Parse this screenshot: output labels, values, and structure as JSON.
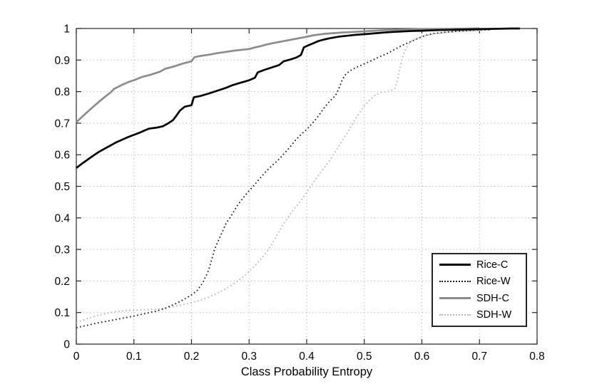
{
  "figure": {
    "background": "#ffffff",
    "axis_color": "#262626",
    "grid_color": "#aaaaaa",
    "tick_label_color": "#000000"
  },
  "chart_data": {
    "type": "line",
    "title": "",
    "xlabel": "Class Probability Entropy",
    "ylabel": "",
    "xlim": [
      0,
      0.8
    ],
    "ylim": [
      0,
      1
    ],
    "grid": true,
    "grid_style": "dotted",
    "legend_position": "lower-right",
    "x_ticks": [
      0,
      0.1,
      0.2,
      0.3,
      0.4,
      0.5,
      0.6,
      0.7,
      0.8
    ],
    "x_tick_labels": [
      "0",
      "0.1",
      "0.2",
      "0.3",
      "0.4",
      "0.5",
      "0.6",
      "0.7",
      "0.8"
    ],
    "y_ticks": [
      0,
      0.1,
      0.2,
      0.3,
      0.4,
      0.5,
      0.6,
      0.7,
      0.8,
      0.9,
      1
    ],
    "y_tick_labels": [
      "0",
      "0.1",
      "0.2",
      "0.3",
      "0.4",
      "0.5",
      "0.6",
      "0.7",
      "0.8",
      "0.9",
      "1"
    ],
    "series": [
      {
        "name": "Rice-C",
        "color": "#000000",
        "line_style": "solid",
        "line_width": 2.7,
        "points": [
          [
            0,
            0.558
          ],
          [
            0.01,
            0.572
          ],
          [
            0.02,
            0.585
          ],
          [
            0.03,
            0.598
          ],
          [
            0.04,
            0.61
          ],
          [
            0.05,
            0.62
          ],
          [
            0.06,
            0.63
          ],
          [
            0.07,
            0.64
          ],
          [
            0.08,
            0.648
          ],
          [
            0.09,
            0.656
          ],
          [
            0.1,
            0.663
          ],
          [
            0.11,
            0.67
          ],
          [
            0.12,
            0.678
          ],
          [
            0.127,
            0.683
          ],
          [
            0.14,
            0.686
          ],
          [
            0.15,
            0.69
          ],
          [
            0.16,
            0.7
          ],
          [
            0.168,
            0.71
          ],
          [
            0.173,
            0.722
          ],
          [
            0.18,
            0.74
          ],
          [
            0.188,
            0.752
          ],
          [
            0.2,
            0.757
          ],
          [
            0.204,
            0.782
          ],
          [
            0.215,
            0.786
          ],
          [
            0.23,
            0.794
          ],
          [
            0.245,
            0.803
          ],
          [
            0.26,
            0.812
          ],
          [
            0.272,
            0.821
          ],
          [
            0.285,
            0.828
          ],
          [
            0.3,
            0.836
          ],
          [
            0.31,
            0.844
          ],
          [
            0.315,
            0.861
          ],
          [
            0.325,
            0.868
          ],
          [
            0.34,
            0.877
          ],
          [
            0.352,
            0.884
          ],
          [
            0.36,
            0.896
          ],
          [
            0.372,
            0.902
          ],
          [
            0.382,
            0.908
          ],
          [
            0.39,
            0.916
          ],
          [
            0.395,
            0.94
          ],
          [
            0.402,
            0.946
          ],
          [
            0.41,
            0.952
          ],
          [
            0.42,
            0.96
          ],
          [
            0.43,
            0.965
          ],
          [
            0.44,
            0.969
          ],
          [
            0.455,
            0.974
          ],
          [
            0.47,
            0.977
          ],
          [
            0.485,
            0.98
          ],
          [
            0.5,
            0.982
          ],
          [
            0.52,
            0.985
          ],
          [
            0.54,
            0.988
          ],
          [
            0.56,
            0.99
          ],
          [
            0.58,
            0.992
          ],
          [
            0.6,
            0.993
          ],
          [
            0.63,
            0.995
          ],
          [
            0.66,
            0.996
          ],
          [
            0.7,
            0.998
          ],
          [
            0.73,
            0.999
          ],
          [
            0.755,
            1
          ],
          [
            0.77,
            1
          ]
        ]
      },
      {
        "name": "Rice-W",
        "color": "#1a1a1a",
        "line_style": "dotted",
        "line_width": 1.8,
        "points": [
          [
            0,
            0.052
          ],
          [
            0.02,
            0.06
          ],
          [
            0.04,
            0.068
          ],
          [
            0.06,
            0.075
          ],
          [
            0.08,
            0.082
          ],
          [
            0.1,
            0.089
          ],
          [
            0.12,
            0.097
          ],
          [
            0.14,
            0.105
          ],
          [
            0.155,
            0.114
          ],
          [
            0.17,
            0.126
          ],
          [
            0.18,
            0.135
          ],
          [
            0.19,
            0.145
          ],
          [
            0.2,
            0.156
          ],
          [
            0.21,
            0.17
          ],
          [
            0.22,
            0.196
          ],
          [
            0.23,
            0.235
          ],
          [
            0.24,
            0.3
          ],
          [
            0.25,
            0.342
          ],
          [
            0.26,
            0.382
          ],
          [
            0.27,
            0.41
          ],
          [
            0.28,
            0.44
          ],
          [
            0.29,
            0.464
          ],
          [
            0.3,
            0.486
          ],
          [
            0.31,
            0.506
          ],
          [
            0.32,
            0.528
          ],
          [
            0.33,
            0.548
          ],
          [
            0.34,
            0.566
          ],
          [
            0.35,
            0.582
          ],
          [
            0.36,
            0.602
          ],
          [
            0.37,
            0.622
          ],
          [
            0.38,
            0.645
          ],
          [
            0.39,
            0.664
          ],
          [
            0.4,
            0.68
          ],
          [
            0.41,
            0.7
          ],
          [
            0.42,
            0.722
          ],
          [
            0.43,
            0.748
          ],
          [
            0.44,
            0.77
          ],
          [
            0.45,
            0.788
          ],
          [
            0.455,
            0.806
          ],
          [
            0.462,
            0.838
          ],
          [
            0.468,
            0.856
          ],
          [
            0.475,
            0.866
          ],
          [
            0.485,
            0.876
          ],
          [
            0.5,
            0.888
          ],
          [
            0.51,
            0.896
          ],
          [
            0.52,
            0.905
          ],
          [
            0.53,
            0.913
          ],
          [
            0.54,
            0.921
          ],
          [
            0.55,
            0.931
          ],
          [
            0.56,
            0.941
          ],
          [
            0.57,
            0.95
          ],
          [
            0.58,
            0.958
          ],
          [
            0.59,
            0.966
          ],
          [
            0.6,
            0.974
          ],
          [
            0.61,
            0.98
          ],
          [
            0.62,
            0.984
          ],
          [
            0.64,
            0.988
          ],
          [
            0.66,
            0.991
          ],
          [
            0.68,
            0.993
          ],
          [
            0.7,
            0.995
          ],
          [
            0.72,
            0.996
          ]
        ]
      },
      {
        "name": "SDH-C",
        "color": "#8c8c8c",
        "line_style": "solid",
        "line_width": 2.7,
        "points": [
          [
            0,
            0.703
          ],
          [
            0.01,
            0.72
          ],
          [
            0.02,
            0.737
          ],
          [
            0.03,
            0.753
          ],
          [
            0.04,
            0.769
          ],
          [
            0.05,
            0.784
          ],
          [
            0.06,
            0.798
          ],
          [
            0.065,
            0.808
          ],
          [
            0.08,
            0.822
          ],
          [
            0.09,
            0.83
          ],
          [
            0.1,
            0.836
          ],
          [
            0.115,
            0.847
          ],
          [
            0.13,
            0.854
          ],
          [
            0.145,
            0.863
          ],
          [
            0.155,
            0.873
          ],
          [
            0.17,
            0.88
          ],
          [
            0.185,
            0.889
          ],
          [
            0.2,
            0.896
          ],
          [
            0.205,
            0.909
          ],
          [
            0.215,
            0.913
          ],
          [
            0.23,
            0.917
          ],
          [
            0.245,
            0.922
          ],
          [
            0.26,
            0.926
          ],
          [
            0.275,
            0.93
          ],
          [
            0.29,
            0.933
          ],
          [
            0.3,
            0.935
          ],
          [
            0.31,
            0.94
          ],
          [
            0.32,
            0.944
          ],
          [
            0.33,
            0.949
          ],
          [
            0.34,
            0.953
          ],
          [
            0.36,
            0.96
          ],
          [
            0.38,
            0.967
          ],
          [
            0.4,
            0.974
          ],
          [
            0.41,
            0.978
          ],
          [
            0.43,
            0.983
          ],
          [
            0.46,
            0.987
          ],
          [
            0.5,
            0.991
          ],
          [
            0.53,
            0.994
          ],
          [
            0.56,
            0.996
          ],
          [
            0.6,
            0.998
          ],
          [
            0.65,
            0.999
          ],
          [
            0.7,
            1
          ]
        ]
      },
      {
        "name": "SDH-W",
        "color": "#b3b3b3",
        "line_style": "dotted",
        "line_width": 1.8,
        "points": [
          [
            0,
            0.068
          ],
          [
            0.01,
            0.075
          ],
          [
            0.02,
            0.081
          ],
          [
            0.03,
            0.087
          ],
          [
            0.04,
            0.092
          ],
          [
            0.05,
            0.096
          ],
          [
            0.06,
            0.1
          ],
          [
            0.07,
            0.103
          ],
          [
            0.08,
            0.105
          ],
          [
            0.09,
            0.106
          ],
          [
            0.1,
            0.107
          ],
          [
            0.12,
            0.109
          ],
          [
            0.14,
            0.111
          ],
          [
            0.15,
            0.113
          ],
          [
            0.16,
            0.116
          ],
          [
            0.17,
            0.119
          ],
          [
            0.18,
            0.123
          ],
          [
            0.19,
            0.127
          ],
          [
            0.2,
            0.131
          ],
          [
            0.21,
            0.136
          ],
          [
            0.22,
            0.142
          ],
          [
            0.23,
            0.149
          ],
          [
            0.24,
            0.157
          ],
          [
            0.25,
            0.166
          ],
          [
            0.26,
            0.176
          ],
          [
            0.27,
            0.187
          ],
          [
            0.28,
            0.2
          ],
          [
            0.29,
            0.214
          ],
          [
            0.3,
            0.23
          ],
          [
            0.31,
            0.248
          ],
          [
            0.32,
            0.268
          ],
          [
            0.33,
            0.29
          ],
          [
            0.34,
            0.318
          ],
          [
            0.35,
            0.35
          ],
          [
            0.36,
            0.382
          ],
          [
            0.37,
            0.408
          ],
          [
            0.38,
            0.432
          ],
          [
            0.39,
            0.455
          ],
          [
            0.4,
            0.48
          ],
          [
            0.41,
            0.508
          ],
          [
            0.42,
            0.534
          ],
          [
            0.43,
            0.558
          ],
          [
            0.44,
            0.582
          ],
          [
            0.45,
            0.61
          ],
          [
            0.46,
            0.64
          ],
          [
            0.47,
            0.668
          ],
          [
            0.48,
            0.7
          ],
          [
            0.49,
            0.728
          ],
          [
            0.5,
            0.755
          ],
          [
            0.51,
            0.775
          ],
          [
            0.52,
            0.79
          ],
          [
            0.53,
            0.798
          ],
          [
            0.545,
            0.802
          ],
          [
            0.553,
            0.81
          ],
          [
            0.558,
            0.84
          ],
          [
            0.562,
            0.878
          ],
          [
            0.566,
            0.905
          ],
          [
            0.57,
            0.928
          ],
          [
            0.575,
            0.945
          ],
          [
            0.58,
            0.958
          ],
          [
            0.59,
            0.968
          ],
          [
            0.6,
            0.974
          ],
          [
            0.61,
            0.979
          ],
          [
            0.62,
            0.983
          ],
          [
            0.64,
            0.987
          ],
          [
            0.66,
            0.99
          ],
          [
            0.68,
            0.992
          ],
          [
            0.7,
            0.994
          ],
          [
            0.72,
            0.996
          ]
        ]
      }
    ]
  }
}
